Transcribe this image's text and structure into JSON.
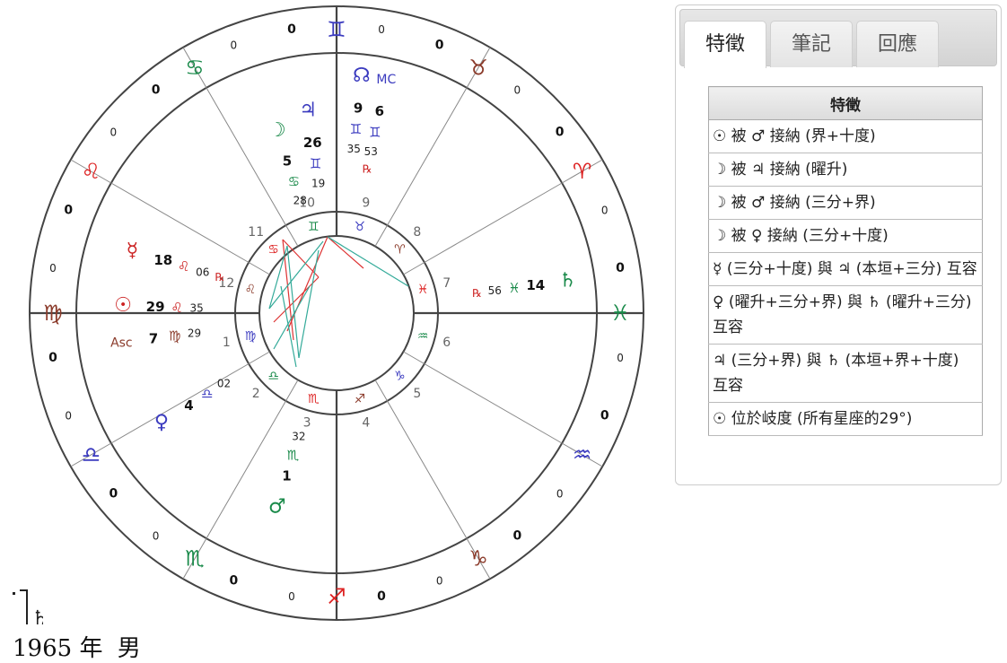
{
  "wheel": {
    "outer_ring": [
      {
        "glyph": "♊",
        "color": "#3b3bbf",
        "deg": "0",
        "deg_left": "0"
      },
      {
        "glyph": "♉",
        "color": "#8b3b2b",
        "deg": "0",
        "deg_left": "0"
      },
      {
        "glyph": "♈",
        "color": "#d22",
        "deg": "0",
        "deg_left": "0"
      },
      {
        "glyph": "♓",
        "color": "#1a8a4a",
        "deg": "0",
        "deg_left": "0"
      },
      {
        "glyph": "♒",
        "color": "#3b3bbf",
        "deg": "0",
        "deg_left": "0"
      },
      {
        "glyph": "♑",
        "color": "#8b3b2b",
        "deg": "0",
        "deg_left": "0"
      },
      {
        "glyph": "♐",
        "color": "#d22",
        "deg": "0",
        "deg_left": "0"
      },
      {
        "glyph": "♏",
        "color": "#1a8a4a",
        "deg": "0",
        "deg_left": "0"
      },
      {
        "glyph": "♎",
        "color": "#3b3bbf",
        "deg": "0",
        "deg_left": "0"
      },
      {
        "glyph": "♍",
        "color": "#8b3b2b",
        "deg": "0",
        "deg_left": "0"
      },
      {
        "glyph": "♌",
        "color": "#d22",
        "deg": "0",
        "deg_left": "0"
      },
      {
        "glyph": "♋",
        "color": "#1a8a4a",
        "deg": "0",
        "deg_left": "0"
      }
    ],
    "house_numbers": [
      "1",
      "2",
      "3",
      "4",
      "5",
      "6",
      "7",
      "8",
      "9",
      "10",
      "11",
      "12"
    ],
    "inner_ring": [
      "♍",
      "♎",
      "♏",
      "♐",
      "♑",
      "♒",
      "♓",
      "♈",
      "♉",
      "♊",
      "♋",
      "♌"
    ],
    "planets": [
      {
        "name": "mc",
        "glyph": "MC",
        "color": "#3b3bbf",
        "deg": "6",
        "sign": "♊",
        "min": "53",
        "retro": "℞"
      },
      {
        "name": "north-node",
        "glyph": "☊",
        "color": "#3b3bbf",
        "deg": "9",
        "sign": "♊",
        "min": "35",
        "retro": ""
      },
      {
        "name": "jupiter",
        "glyph": "♃",
        "color": "#3b3bbf",
        "deg": "26",
        "sign": "♊",
        "min": "19",
        "retro": ""
      },
      {
        "name": "moon",
        "glyph": "☽",
        "color": "#1a8a4a",
        "deg": "5",
        "sign": "♋",
        "min": "28",
        "retro": ""
      },
      {
        "name": "saturn",
        "glyph": "♄",
        "color": "#1a8a4a",
        "deg": "14",
        "sign": "♓",
        "min": "56",
        "retro": "℞"
      },
      {
        "name": "mercury",
        "glyph": "☿",
        "color": "#c22",
        "deg": "18",
        "sign": "♌",
        "min": "06",
        "retro": "℞"
      },
      {
        "name": "sun",
        "glyph": "☉",
        "color": "#c22",
        "deg": "29",
        "sign": "♌",
        "min": "35",
        "retro": ""
      },
      {
        "name": "ascendant",
        "glyph": "Asc",
        "color": "#8b3b2b",
        "deg": "7",
        "sign": "♍",
        "min": "29",
        "retro": ""
      },
      {
        "name": "venus",
        "glyph": "♀",
        "color": "#3b3bbf",
        "deg": "4",
        "sign": "♎",
        "min": "02",
        "retro": ""
      },
      {
        "name": "mars",
        "glyph": "♂",
        "color": "#1a8a4a",
        "deg": "1",
        "sign": "♏",
        "min": "32",
        "retro": ""
      }
    ]
  },
  "caption": {
    "year": "1965",
    "year_unit": "年",
    "gender": "男"
  },
  "panel": {
    "tabs": [
      "特徵",
      "筆記",
      "回應"
    ],
    "table_header": "特徵",
    "rows": [
      "☉ 被 ♂ 接納 (界+十度)",
      "☽ 被 ♃ 接納 (曜升)",
      "☽ 被 ♂ 接納 (三分+界)",
      "☽ 被 ♀ 接納 (三分+十度)",
      "☿ (三分+十度) 與 ♃ (本垣+三分) 互容",
      "♀ (曜升+三分+界) 與 ♄ (曜升+三分) 互容",
      "♃ (三分+界) 與 ♄ (本垣+界+十度) 互容",
      "☉ 位於岐度 (所有星座的29°)"
    ]
  }
}
